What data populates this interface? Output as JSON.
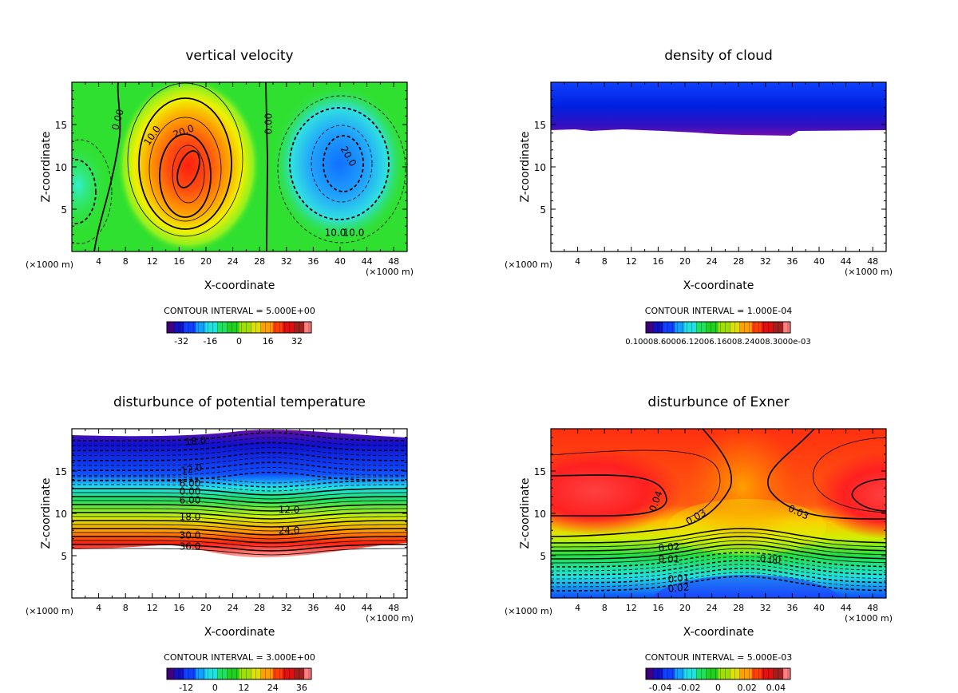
{
  "chart_data": [
    {
      "type": "heatmap",
      "title": "vertical velocity",
      "xlabel": "X-coordinate",
      "ylabel": "Z-coordinate",
      "x_unit_left": "(×1000 m)",
      "x_unit_right": "(×1000 m)",
      "xlim": [
        0,
        50
      ],
      "ylim": [
        0,
        20
      ],
      "xticks": [
        "4",
        "8",
        "12",
        "16",
        "20",
        "24",
        "28",
        "32",
        "36",
        "40",
        "44",
        "48"
      ],
      "yticks": [
        "5",
        "10",
        "15"
      ],
      "contour_interval": "CONTOUR INTERVAL = 5.000E+00",
      "contour_labels": [
        "0.00",
        "10.0",
        "20.0",
        "0.00",
        "20.0",
        "10.0",
        "10.0"
      ],
      "colorbar_labels": [
        "-32",
        "-16",
        "0",
        "16",
        "32"
      ],
      "colorbar_range": [
        -40,
        40
      ]
    },
    {
      "type": "heatmap",
      "title": "density of cloud",
      "xlabel": "X-coordinate",
      "ylabel": "Z-coordinate",
      "x_unit_left": "(×1000 m)",
      "x_unit_right": "(×1000 m)",
      "xlim": [
        0,
        50
      ],
      "ylim": [
        0,
        20
      ],
      "xticks": [
        "4",
        "8",
        "12",
        "16",
        "20",
        "24",
        "28",
        "32",
        "36",
        "40",
        "44",
        "48"
      ],
      "yticks": [
        "5",
        "10",
        "15"
      ],
      "contour_interval": "CONTOUR INTERVAL = 1.000E-04",
      "contour_labels": [],
      "colorbar_labels": [
        "0.10008.60006.12006.16008.24008.3000e-03"
      ]
    },
    {
      "type": "heatmap",
      "title": "disturbunce of potential temperature",
      "xlabel": "X-coordinate",
      "ylabel": "Z-coordinate",
      "x_unit_left": "(×1000 m)",
      "x_unit_right": "(×1000 m)",
      "xlim": [
        0,
        50
      ],
      "ylim": [
        0,
        20
      ],
      "xticks": [
        "4",
        "8",
        "12",
        "16",
        "20",
        "24",
        "28",
        "32",
        "36",
        "40",
        "44",
        "48"
      ],
      "yticks": [
        "5",
        "10",
        "15"
      ],
      "contour_interval": "CONTOUR INTERVAL = 3.000E+00",
      "contour_labels": [
        "18.0",
        "12.0",
        "6.00",
        "0.00",
        "6.00",
        "12.0",
        "18.0",
        "24.0",
        "30.0",
        "36.0"
      ],
      "colorbar_labels": [
        "-12",
        "0",
        "12",
        "24",
        "36"
      ],
      "colorbar_range": [
        -20,
        40
      ]
    },
    {
      "type": "heatmap",
      "title": "disturbunce of Exner",
      "xlabel": "X-coordinate",
      "ylabel": "Z-coordinate",
      "x_unit_left": "(×1000 m)",
      "x_unit_right": "(×1000 m)",
      "xlim": [
        0,
        50
      ],
      "ylim": [
        0,
        20
      ],
      "xticks": [
        "4",
        "8",
        "12",
        "16",
        "20",
        "24",
        "28",
        "32",
        "36",
        "40",
        "44",
        "48"
      ],
      "yticks": [
        "5",
        "10",
        "15"
      ],
      "contour_interval": "CONTOUR INTERVAL = 5.000E-03",
      "contour_labels": [
        "0.04",
        "0.03",
        "0.03",
        "0.02",
        "0.01",
        "0.00",
        "0.01",
        "0.02"
      ],
      "colorbar_labels": [
        "-0.04",
        "-0.02",
        "0",
        "0.02",
        "0.04"
      ],
      "colorbar_range": [
        -0.05,
        0.05
      ]
    }
  ]
}
